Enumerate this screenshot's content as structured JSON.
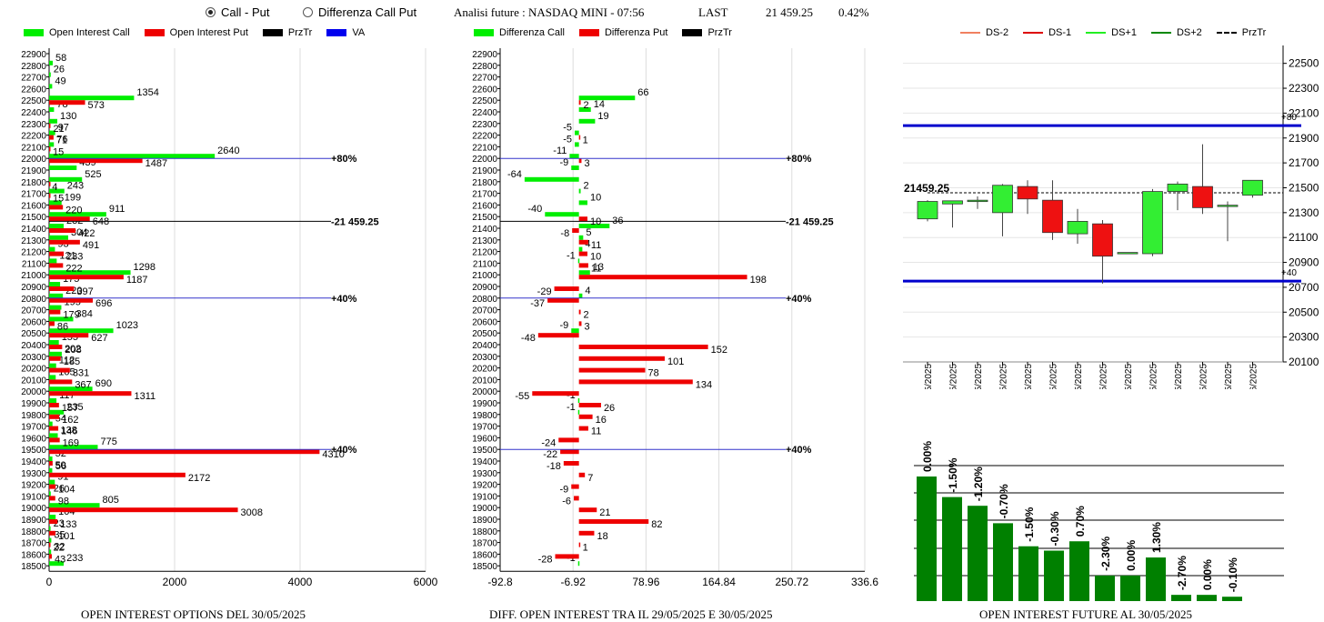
{
  "header": {
    "radio_call_put": "Call - Put",
    "radio_diff": "Differenza Call Put",
    "title": "Analisi future : NASDAQ MINI - 07:56",
    "last_label": "LAST",
    "last_value": "21 459.25",
    "change": "0.42%"
  },
  "panel1": {
    "legend": [
      "Open Interest Call",
      "Open Interest Put",
      "PrzTr",
      "VA"
    ],
    "legend_colors": [
      "#00ee00",
      "#ee0000",
      "#000000",
      "#0000ee"
    ],
    "caption": "OPEN INTEREST OPTIONS DEL 30/05/2025"
  },
  "panel2": {
    "legend": [
      "Differenza Call",
      "Differenza Put",
      "PrzTr"
    ],
    "caption": "DIFF. OPEN INTEREST TRA IL 29/05/2025 E 30/05/2025"
  },
  "panel3": {
    "legend": [
      "DS-2",
      "DS-1",
      "DS+1",
      "DS+2",
      "PrzTr"
    ],
    "legend_colors": [
      "#f08060",
      "#dd0000",
      "#22ee22",
      "#008800",
      "#000000"
    ]
  },
  "panel4": {
    "caption": "OPEN INTEREST FUTURE AL 30/05/2025"
  },
  "chart_data": [
    {
      "type": "bar",
      "orientation": "horizontal",
      "strikes": [
        22900,
        22800,
        22700,
        22600,
        22500,
        22400,
        22300,
        22200,
        22100,
        22000,
        21900,
        21800,
        21700,
        21600,
        21500,
        21400,
        21300,
        21200,
        21100,
        21000,
        20900,
        20800,
        20700,
        20600,
        20500,
        20400,
        20300,
        20200,
        20100,
        20000,
        19900,
        19800,
        19700,
        19600,
        19500,
        19400,
        19300,
        19200,
        19100,
        19000,
        18900,
        18800,
        18700,
        18600,
        18500
      ],
      "series": [
        {
          "name": "Open Interest Call",
          "values": [
            0,
            58,
            26,
            49,
            1354,
            78,
            130,
            97,
            76,
            2640,
            439,
            525,
            243,
            199,
            911,
            232,
            304,
            93,
            121,
            1298,
            175,
            220,
            195,
            384,
            1023,
            155,
            202,
            112,
            105,
            690,
            117,
            235,
            54,
            138,
            775,
            52,
            50,
            91,
            26,
            805,
            104,
            23,
            35,
            32,
            233
          ]
        },
        {
          "name": "Open Interest Put",
          "values": [
            0,
            0,
            0,
            0,
            573,
            0,
            21,
            71,
            15,
            1487,
            0,
            4,
            15,
            220,
            648,
            422,
            491,
            233,
            222,
            1187,
            397,
            696,
            179,
            86,
            627,
            208,
            185,
            331,
            367,
            1311,
            157,
            162,
            146,
            169,
            4310,
            56,
            2172,
            104,
            98,
            3008,
            133,
            101,
            22,
            43,
            0
          ]
        }
      ],
      "xticks": [
        0,
        2000,
        4000,
        6000
      ],
      "xlim": [
        0,
        6000
      ],
      "ref_lines": [
        {
          "strike": 22000,
          "label": "80%"
        },
        {
          "strike": 21459.25,
          "label": "21 459.25"
        },
        {
          "strike": 20800,
          "label": "40%"
        },
        {
          "strike": 19500,
          "label": "40%"
        }
      ]
    },
    {
      "type": "bar",
      "orientation": "horizontal",
      "strikes": [
        22900,
        22800,
        22700,
        22600,
        22500,
        22400,
        22300,
        22200,
        22100,
        22000,
        21900,
        21800,
        21700,
        21600,
        21500,
        21400,
        21300,
        21200,
        21100,
        21000,
        20900,
        20800,
        20700,
        20600,
        20500,
        20400,
        20300,
        20200,
        20100,
        20000,
        19900,
        19800,
        19700,
        19600,
        19500,
        19400,
        19300,
        19200,
        19100,
        19000,
        18900,
        18800,
        18700,
        18600,
        18500
      ],
      "series": [
        {
          "name": "Differenza Call",
          "values": [
            null,
            null,
            null,
            null,
            66,
            14,
            19,
            -5,
            -5,
            -11,
            -9,
            -64,
            2,
            10,
            -40,
            36,
            5,
            4,
            -1,
            13,
            null,
            4,
            null,
            null,
            -9,
            null,
            null,
            null,
            null,
            null,
            -1,
            -1,
            null,
            null,
            null,
            null,
            null,
            null,
            null,
            null,
            null,
            null,
            null,
            null,
            -1
          ]
        },
        {
          "name": "Differenza Put",
          "values": [
            null,
            null,
            null,
            null,
            2,
            null,
            null,
            1,
            null,
            3,
            null,
            null,
            null,
            null,
            10,
            -8,
            11,
            10,
            11,
            198,
            -29,
            -37,
            2,
            3,
            -48,
            152,
            101,
            78,
            134,
            -55,
            26,
            16,
            11,
            -24,
            -22,
            -18,
            7,
            -9,
            -6,
            21,
            82,
            18,
            1,
            -28,
            null
          ]
        }
      ],
      "xticks": [
        -92.8,
        -6.92,
        78.96,
        164.84,
        250.72,
        336.6
      ],
      "xlim": [
        -92.8,
        336.6
      ],
      "ref_lines": [
        {
          "strike": 22000,
          "label": "80%"
        },
        {
          "strike": 21459.25,
          "label": "21 459.25"
        },
        {
          "strike": 20800,
          "label": "40%"
        },
        {
          "strike": 19500,
          "label": "40%"
        }
      ]
    },
    {
      "type": "candlestick",
      "dates": [
        "14/05/2025",
        "15/05/2025",
        "16/05/2025",
        "19/05/2025",
        "20/05/2025",
        "21/05/2025",
        "22/05/2025",
        "23/05/2025",
        "26/05/2025",
        "27/05/2025",
        "28/05/2025",
        "29/05/2025",
        "30/05/2025",
        "03/06/2025"
      ],
      "ohlc": [
        [
          21250,
          21400,
          21230,
          21390
        ],
        [
          21370,
          21390,
          21180,
          21395
        ],
        [
          21390,
          21430,
          21330,
          21400
        ],
        [
          21300,
          21530,
          21110,
          21520
        ],
        [
          21510,
          21560,
          21290,
          21410
        ],
        [
          21400,
          21560,
          21080,
          21140
        ],
        [
          21130,
          21330,
          21050,
          21230
        ],
        [
          21210,
          21240,
          20730,
          20950
        ],
        [
          20980,
          20980,
          20980,
          20980
        ],
        [
          20970,
          21490,
          20950,
          21470
        ],
        [
          21470,
          21550,
          21320,
          21530
        ],
        [
          21510,
          21850,
          21290,
          21340
        ],
        [
          21360,
          21390,
          21070,
          21360
        ],
        [
          21440,
          21560,
          21420,
          21560
        ]
      ],
      "yticks": [
        20100,
        20300,
        20500,
        20700,
        20900,
        21100,
        21300,
        21500,
        21700,
        21900,
        22100,
        22300,
        22500
      ],
      "ylim": [
        20100,
        22600
      ],
      "hlines": [
        {
          "value": 22000,
          "label": "+80"
        },
        {
          "value": 20750,
          "label": "+40"
        }
      ],
      "przTr": 21459.25,
      "przTr_label": "21459.25"
    },
    {
      "type": "bar",
      "categories": [
        "14/05/2025",
        "15/05/2025",
        "16/05/2025",
        "19/05/2025",
        "20/05/2025",
        "21/05/2025",
        "22/05/2025",
        "23/05/2025",
        "26/05/2025",
        "27/05/2025",
        "28/05/2025",
        "29/05/2025",
        "30/05/2025"
      ],
      "values": [
        100,
        83.5,
        76.5,
        62.5,
        44,
        40.5,
        48,
        20.5,
        20.5,
        35,
        5,
        5,
        3.5
      ],
      "labels": [
        "0.00%",
        "-1.50%",
        "-1.20%",
        "-0.70%",
        "-1.50%",
        "-0.30%",
        "0.70%",
        "-2.30%",
        "0.00%",
        "1.30%",
        "-2.70%",
        "0.00%",
        "-0.10%"
      ]
    }
  ]
}
